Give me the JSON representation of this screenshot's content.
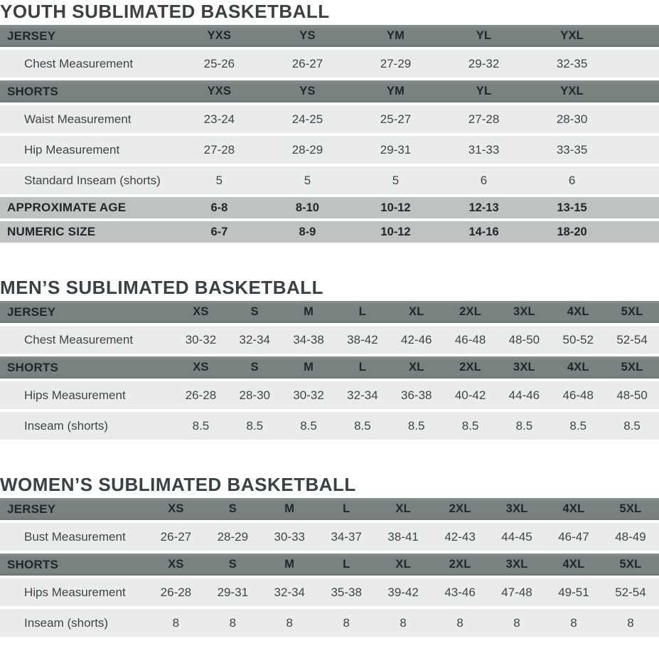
{
  "colors": {
    "header_band": "#7a8281",
    "summary_band": "#bec3c1",
    "row_background": "#eaeceb",
    "title_text": "#3a4145",
    "band_text": "#20272a",
    "data_text": "#3e4548"
  },
  "sections": [
    {
      "id": "youth",
      "title": "YOUTH SUBLIMATED BASKETBALL",
      "groups": [
        {
          "band_label": "JERSEY",
          "sizes": [
            "YXS",
            "YS",
            "YM",
            "YL",
            "YXL"
          ],
          "rows": [
            {
              "label": "Chest Measurement",
              "values": [
                "25-26",
                "26-27",
                "27-29",
                "29-32",
                "32-35"
              ]
            }
          ]
        },
        {
          "band_label": "SHORTS",
          "sizes": [
            "YXS",
            "YS",
            "YM",
            "YL",
            "YXL"
          ],
          "rows": [
            {
              "label": "Waist Measurement",
              "values": [
                "23-24",
                "24-25",
                "25-27",
                "27-28",
                "28-30"
              ]
            },
            {
              "label": "Hip Measurement",
              "values": [
                "27-28",
                "28-29",
                "29-31",
                "31-33",
                "33-35"
              ]
            },
            {
              "label": "Standard Inseam (shorts)",
              "values": [
                "5",
                "5",
                "5",
                "6",
                "6"
              ]
            }
          ]
        }
      ],
      "summary_rows": [
        {
          "label": "APPROXIMATE AGE",
          "values": [
            "6-8",
            "8-10",
            "10-12",
            "12-13",
            "13-15"
          ]
        },
        {
          "label": "NUMERIC SIZE",
          "values": [
            "6-7",
            "8-9",
            "10-12",
            "14-16",
            "18-20"
          ]
        }
      ]
    },
    {
      "id": "mens",
      "title": "MEN’S SUBLIMATED BASKETBALL",
      "groups": [
        {
          "band_label": "JERSEY",
          "sizes": [
            "XS",
            "S",
            "M",
            "L",
            "XL",
            "2XL",
            "3XL",
            "4XL",
            "5XL"
          ],
          "rows": [
            {
              "label": "Chest Measurement",
              "values": [
                "30-32",
                "32-34",
                "34-38",
                "38-42",
                "42-46",
                "46-48",
                "48-50",
                "50-52",
                "52-54"
              ]
            }
          ]
        },
        {
          "band_label": "SHORTS",
          "sizes": [
            "XS",
            "S",
            "M",
            "L",
            "XL",
            "2XL",
            "3XL",
            "4XL",
            "5XL"
          ],
          "rows": [
            {
              "label": "Hips Measurement",
              "values": [
                "26-28",
                "28-30",
                "30-32",
                "32-34",
                "36-38",
                "40-42",
                "44-46",
                "46-48",
                "48-50"
              ]
            },
            {
              "label": "Inseam (shorts)",
              "values": [
                "8.5",
                "8.5",
                "8.5",
                "8.5",
                "8.5",
                "8.5",
                "8.5",
                "8.5",
                "8.5"
              ]
            }
          ]
        }
      ],
      "summary_rows": []
    },
    {
      "id": "womens",
      "title": "WOMEN’S SUBLIMATED BASKETBALL",
      "groups": [
        {
          "band_label": "JERSEY",
          "sizes": [
            "XS",
            "S",
            "M",
            "L",
            "XL",
            "2XL",
            "3XL",
            "4XL",
            "5XL"
          ],
          "rows": [
            {
              "label": "Bust Measurement",
              "values": [
                "26-27",
                "28-29",
                "30-33",
                "34-37",
                "38-41",
                "42-43",
                "44-45",
                "46-47",
                "48-49"
              ]
            }
          ]
        },
        {
          "band_label": "SHORTS",
          "sizes": [
            "XS",
            "S",
            "M",
            "L",
            "XL",
            "2XL",
            "3XL",
            "4XL",
            "5XL"
          ],
          "rows": [
            {
              "label": "Hips Measurement",
              "values": [
                "26-28",
                "29-31",
                "32-34",
                "35-38",
                "39-42",
                "43-46",
                "47-48",
                "49-51",
                "52-54"
              ]
            },
            {
              "label": "Inseam (shorts)",
              "values": [
                "8",
                "8",
                "8",
                "8",
                "8",
                "8",
                "8",
                "8",
                "8"
              ]
            }
          ]
        }
      ],
      "summary_rows": []
    }
  ]
}
